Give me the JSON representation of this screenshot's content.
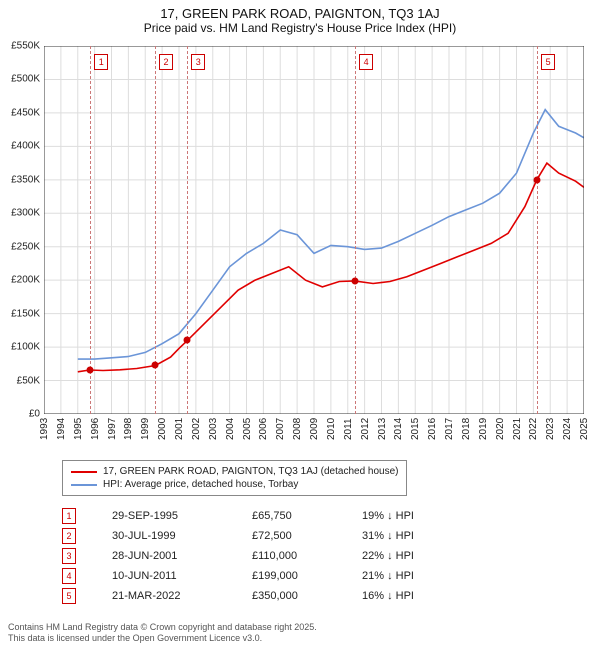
{
  "title_line1": "17, GREEN PARK ROAD, PAIGNTON, TQ3 1AJ",
  "title_line2": "Price paid vs. HM Land Registry's House Price Index (HPI)",
  "chart": {
    "type": "line",
    "background_color": "#ffffff",
    "grid_color": "#dddddd",
    "axis_color": "#333333",
    "x_start_year": 1993,
    "x_end_year": 2025,
    "ylim": [
      0,
      550000
    ],
    "ytick_step": 50000,
    "ytick_labels": [
      "£0",
      "£50K",
      "£100K",
      "£150K",
      "£200K",
      "£250K",
      "£300K",
      "£350K",
      "£400K",
      "£450K",
      "£500K",
      "£550K"
    ],
    "xtick_years": [
      1993,
      1994,
      1995,
      1996,
      1997,
      1998,
      1999,
      2000,
      2001,
      2002,
      2003,
      2004,
      2005,
      2006,
      2007,
      2008,
      2009,
      2010,
      2011,
      2012,
      2013,
      2014,
      2015,
      2016,
      2017,
      2018,
      2019,
      2020,
      2021,
      2022,
      2023,
      2024,
      2025
    ],
    "tick_fontsize": 10,
    "title_fontsize": 13,
    "line_width": 1.6,
    "marker_size": 7,
    "marker_color": "#cc0000",
    "vline_color": "#cc7777",
    "series": [
      {
        "name": "property",
        "label": "17, GREEN PARK ROAD, PAIGNTON, TQ3 1AJ (detached house)",
        "color": "#e00000",
        "points": [
          [
            1995.0,
            63000
          ],
          [
            1995.7,
            65750
          ],
          [
            1996.5,
            65000
          ],
          [
            1997.5,
            66000
          ],
          [
            1998.5,
            68000
          ],
          [
            1999.6,
            72500
          ],
          [
            2000.5,
            85000
          ],
          [
            2001.0,
            98000
          ],
          [
            2001.5,
            110000
          ],
          [
            2002.5,
            135000
          ],
          [
            2003.5,
            160000
          ],
          [
            2004.5,
            185000
          ],
          [
            2005.5,
            200000
          ],
          [
            2006.5,
            210000
          ],
          [
            2007.5,
            220000
          ],
          [
            2008.5,
            200000
          ],
          [
            2009.5,
            190000
          ],
          [
            2010.5,
            198000
          ],
          [
            2011.4,
            199000
          ],
          [
            2012.5,
            195000
          ],
          [
            2013.5,
            198000
          ],
          [
            2014.5,
            205000
          ],
          [
            2015.5,
            215000
          ],
          [
            2016.5,
            225000
          ],
          [
            2017.5,
            235000
          ],
          [
            2018.5,
            245000
          ],
          [
            2019.5,
            255000
          ],
          [
            2020.5,
            270000
          ],
          [
            2021.5,
            310000
          ],
          [
            2022.2,
            350000
          ],
          [
            2022.8,
            375000
          ],
          [
            2023.5,
            360000
          ],
          [
            2024.5,
            348000
          ],
          [
            2025.2,
            335000
          ]
        ]
      },
      {
        "name": "hpi",
        "label": "HPI: Average price, detached house, Torbay",
        "color": "#6b95d8",
        "points": [
          [
            1995.0,
            82000
          ],
          [
            1996.0,
            82000
          ],
          [
            1997.0,
            84000
          ],
          [
            1998.0,
            86000
          ],
          [
            1999.0,
            92000
          ],
          [
            2000.0,
            105000
          ],
          [
            2001.0,
            120000
          ],
          [
            2002.0,
            150000
          ],
          [
            2003.0,
            185000
          ],
          [
            2004.0,
            220000
          ],
          [
            2005.0,
            240000
          ],
          [
            2006.0,
            255000
          ],
          [
            2007.0,
            275000
          ],
          [
            2008.0,
            268000
          ],
          [
            2009.0,
            240000
          ],
          [
            2010.0,
            252000
          ],
          [
            2011.0,
            250000
          ],
          [
            2012.0,
            246000
          ],
          [
            2013.0,
            248000
          ],
          [
            2014.0,
            258000
          ],
          [
            2015.0,
            270000
          ],
          [
            2016.0,
            282000
          ],
          [
            2017.0,
            295000
          ],
          [
            2018.0,
            305000
          ],
          [
            2019.0,
            315000
          ],
          [
            2020.0,
            330000
          ],
          [
            2021.0,
            360000
          ],
          [
            2022.0,
            420000
          ],
          [
            2022.7,
            455000
          ],
          [
            2023.5,
            430000
          ],
          [
            2024.5,
            420000
          ],
          [
            2025.2,
            410000
          ]
        ]
      }
    ],
    "sale_markers": [
      {
        "n": "1",
        "year": 1995.74,
        "price": 65750
      },
      {
        "n": "2",
        "year": 1999.58,
        "price": 72500
      },
      {
        "n": "3",
        "year": 2001.49,
        "price": 110000
      },
      {
        "n": "4",
        "year": 2011.44,
        "price": 199000
      },
      {
        "n": "5",
        "year": 2022.22,
        "price": 350000
      }
    ]
  },
  "legend": {
    "items": [
      {
        "color": "#e00000",
        "label": "17, GREEN PARK ROAD, PAIGNTON, TQ3 1AJ (detached house)"
      },
      {
        "color": "#6b95d8",
        "label": "HPI: Average price, detached house, Torbay"
      }
    ]
  },
  "sales": [
    {
      "n": "1",
      "date": "29-SEP-1995",
      "price": "£65,750",
      "delta": "19% ↓ HPI"
    },
    {
      "n": "2",
      "date": "30-JUL-1999",
      "price": "£72,500",
      "delta": "31% ↓ HPI"
    },
    {
      "n": "3",
      "date": "28-JUN-2001",
      "price": "£110,000",
      "delta": "22% ↓ HPI"
    },
    {
      "n": "4",
      "date": "10-JUN-2011",
      "price": "£199,000",
      "delta": "21% ↓ HPI"
    },
    {
      "n": "5",
      "date": "21-MAR-2022",
      "price": "£350,000",
      "delta": "16% ↓ HPI"
    }
  ],
  "footer_line1": "Contains HM Land Registry data © Crown copyright and database right 2025.",
  "footer_line2": "This data is licensed under the Open Government Licence v3.0."
}
